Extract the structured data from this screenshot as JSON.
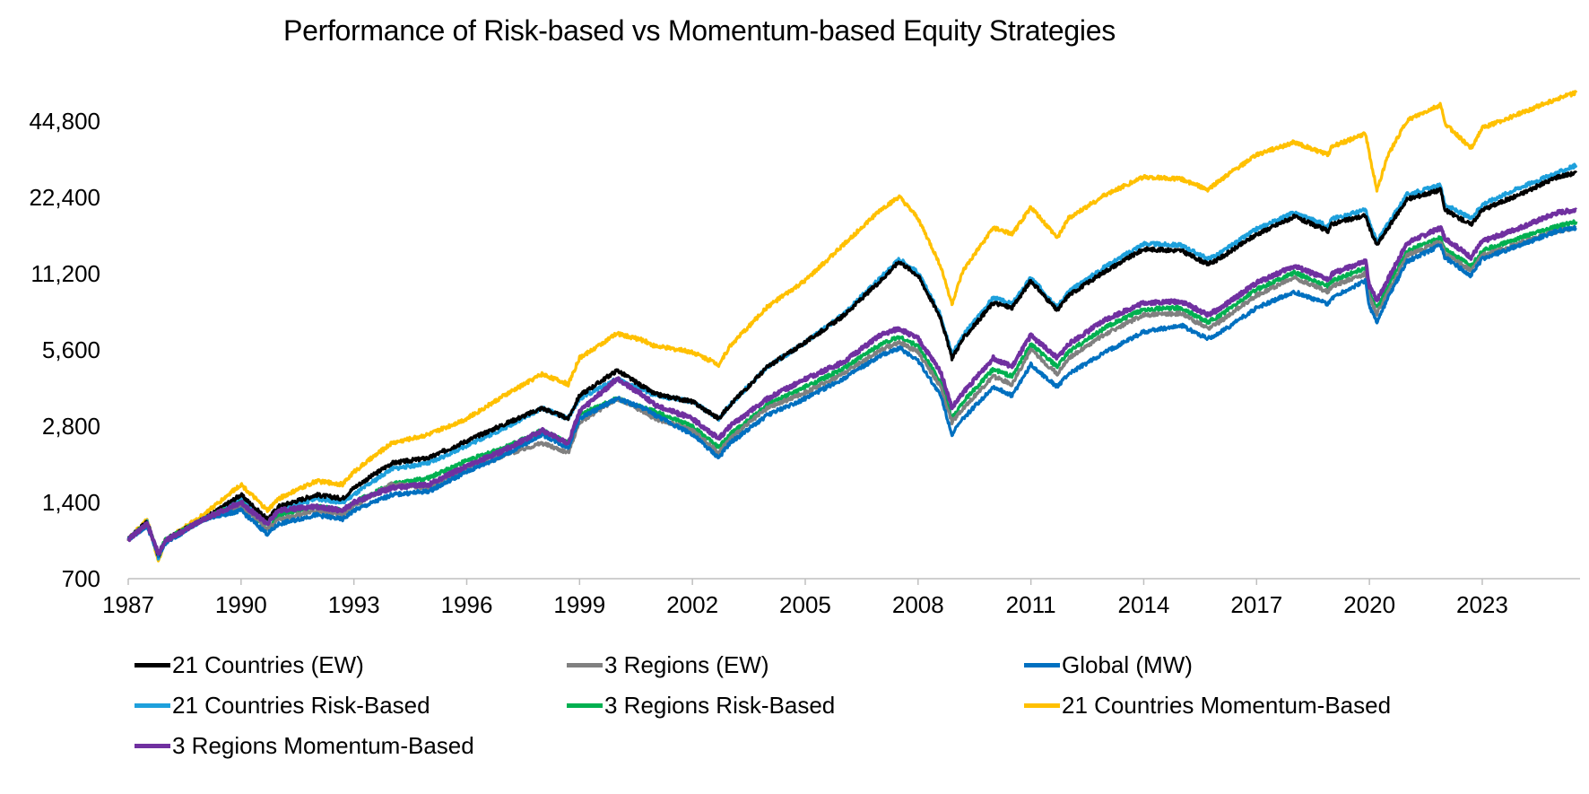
{
  "chart_data": {
    "type": "line",
    "title": "Performance of Risk-based vs Momentum-based Equity Strategies",
    "xlabel": "",
    "ylabel": "",
    "y_scale": "log2",
    "ylim": [
      700,
      60000
    ],
    "xlim": [
      1987,
      2025.6
    ],
    "y_ticks": [
      700,
      1400,
      2800,
      5600,
      11200,
      22400,
      44800
    ],
    "y_tick_labels": [
      "700",
      "1,400",
      "2,800",
      "5,600",
      "11,200",
      "22,400",
      "44,800"
    ],
    "x_ticks": [
      1987,
      1990,
      1993,
      1996,
      1999,
      2002,
      2005,
      2008,
      2011,
      2014,
      2017,
      2020,
      2023
    ],
    "x_tick_labels": [
      "1987",
      "1990",
      "1993",
      "1996",
      "1999",
      "2002",
      "2005",
      "2008",
      "2011",
      "2014",
      "2017",
      "2020",
      "2023"
    ],
    "grid": false,
    "legend_position": "bottom",
    "x": [
      1987,
      1987.5,
      1987.8,
      1988,
      1989,
      1990,
      1990.7,
      1991,
      1992,
      1992.7,
      1993,
      1994,
      1995,
      1996,
      1997,
      1998,
      1998.7,
      1999,
      2000,
      2000.7,
      2001,
      2002,
      2002.7,
      2003,
      2004,
      2005,
      2006,
      2007,
      2007.5,
      2008,
      2008.6,
      2008.9,
      2009.2,
      2010,
      2010.5,
      2011,
      2011.7,
      2012,
      2013,
      2014,
      2015,
      2015.7,
      2016,
      2017,
      2018,
      2018.9,
      2019,
      2019.9,
      2020,
      2020.2,
      2020.5,
      2021,
      2021.9,
      2022,
      2022.7,
      2023,
      2024,
      2025,
      2025.5
    ],
    "series": [
      {
        "name": "21 Countries (EW)",
        "color": "#000000",
        "values": [
          1000,
          1180,
          860,
          1000,
          1200,
          1500,
          1200,
          1350,
          1500,
          1450,
          1600,
          2000,
          2100,
          2450,
          2850,
          3300,
          3000,
          3700,
          4650,
          4000,
          3750,
          3500,
          3000,
          3400,
          4800,
          6000,
          7600,
          10500,
          12500,
          11000,
          7500,
          5200,
          6200,
          8600,
          8200,
          10500,
          8000,
          9200,
          11500,
          14000,
          13800,
          12200,
          12800,
          16000,
          18800,
          16500,
          17600,
          19000,
          17000,
          14500,
          17000,
          22000,
          24000,
          20000,
          17500,
          20000,
          23000,
          27000,
          28000
        ]
      },
      {
        "name": "3 Regions (EW)",
        "color": "#808080",
        "values": [
          1000,
          1150,
          880,
          980,
          1200,
          1350,
          1100,
          1200,
          1300,
          1250,
          1350,
          1650,
          1600,
          1900,
          2150,
          2400,
          2200,
          2900,
          3600,
          3200,
          3000,
          2700,
          2200,
          2500,
          3300,
          3800,
          4500,
          5600,
          6000,
          5500,
          4000,
          2900,
          3300,
          4400,
          4100,
          5600,
          4500,
          5200,
          6500,
          7700,
          7800,
          6800,
          7200,
          9200,
          10800,
          9500,
          10000,
          11200,
          9000,
          7800,
          9500,
          13200,
          15000,
          13500,
          11500,
          13200,
          14800,
          16500,
          17000
        ]
      },
      {
        "name": "Global (MW)",
        "color": "#0070c0",
        "values": [
          1000,
          1130,
          860,
          970,
          1200,
          1300,
          1050,
          1150,
          1250,
          1200,
          1300,
          1500,
          1550,
          1850,
          2150,
          2600,
          2300,
          3000,
          3600,
          3300,
          3100,
          2600,
          2100,
          2400,
          3100,
          3600,
          4300,
          5300,
          5700,
          5100,
          3700,
          2600,
          3000,
          4000,
          3700,
          4900,
          4000,
          4500,
          5500,
          6600,
          7000,
          6200,
          6500,
          8200,
          9500,
          8500,
          9000,
          10500,
          8300,
          7200,
          9000,
          12500,
          14500,
          13000,
          11000,
          12800,
          14500,
          16500,
          17000
        ]
      },
      {
        "name": "21 Countries Risk-Based",
        "color": "#1ea0dc",
        "values": [
          1000,
          1170,
          850,
          990,
          1200,
          1450,
          1150,
          1300,
          1450,
          1400,
          1500,
          1900,
          2000,
          2350,
          2750,
          3300,
          3000,
          3600,
          4300,
          3900,
          3700,
          3500,
          3000,
          3400,
          4800,
          6000,
          7700,
          10800,
          12800,
          11300,
          7700,
          5400,
          6400,
          9000,
          8500,
          10800,
          8300,
          9500,
          12000,
          14700,
          14500,
          12800,
          13400,
          16800,
          19500,
          17300,
          18400,
          20000,
          17800,
          15000,
          17700,
          23000,
          25000,
          21000,
          18500,
          21000,
          24500,
          28000,
          30000
        ]
      },
      {
        "name": "3 Regions Risk-Based",
        "color": "#00b050",
        "values": [
          1000,
          1160,
          880,
          1000,
          1200,
          1400,
          1100,
          1250,
          1350,
          1300,
          1400,
          1650,
          1750,
          2050,
          2300,
          2700,
          2400,
          3100,
          3600,
          3300,
          3200,
          2800,
          2300,
          2600,
          3400,
          4000,
          4700,
          5900,
          6300,
          5800,
          4200,
          3000,
          3500,
          4700,
          4400,
          5900,
          4800,
          5500,
          6900,
          8100,
          8200,
          7200,
          7600,
          9700,
          11300,
          10000,
          10500,
          11800,
          9400,
          8200,
          10000,
          13800,
          15500,
          14000,
          12000,
          13800,
          15500,
          17200,
          18000
        ]
      },
      {
        "name": "21 Countries Momentum-Based",
        "color": "#ffc000",
        "values": [
          1000,
          1200,
          820,
          1000,
          1250,
          1650,
          1300,
          1450,
          1700,
          1650,
          1850,
          2400,
          2600,
          3000,
          3700,
          4500,
          4100,
          5200,
          6500,
          6100,
          5800,
          5500,
          4900,
          5800,
          8300,
          10500,
          14500,
          20000,
          22500,
          18500,
          12000,
          8500,
          11500,
          17000,
          16000,
          20500,
          15500,
          18500,
          23000,
          27000,
          26500,
          24000,
          26000,
          33000,
          37000,
          33000,
          35500,
          40000,
          33000,
          24000,
          33000,
          45000,
          52000,
          44000,
          35000,
          42000,
          48000,
          55000,
          58000
        ]
      },
      {
        "name": "3 Regions Momentum-Based",
        "color": "#7030a0",
        "values": [
          1000,
          1150,
          880,
          990,
          1200,
          1400,
          1150,
          1300,
          1350,
          1300,
          1400,
          1600,
          1650,
          1950,
          2250,
          2700,
          2400,
          3200,
          4300,
          3700,
          3400,
          3000,
          2500,
          2800,
          3600,
          4300,
          5000,
          6400,
          6800,
          6200,
          4600,
          3300,
          3800,
          5200,
          4800,
          6400,
          5200,
          5900,
          7400,
          8600,
          8700,
          7700,
          8100,
          10300,
          12000,
          10600,
          11200,
          12500,
          10000,
          8800,
          10700,
          14800,
          17000,
          15500,
          13000,
          15000,
          17000,
          19500,
          20000
        ]
      }
    ]
  }
}
